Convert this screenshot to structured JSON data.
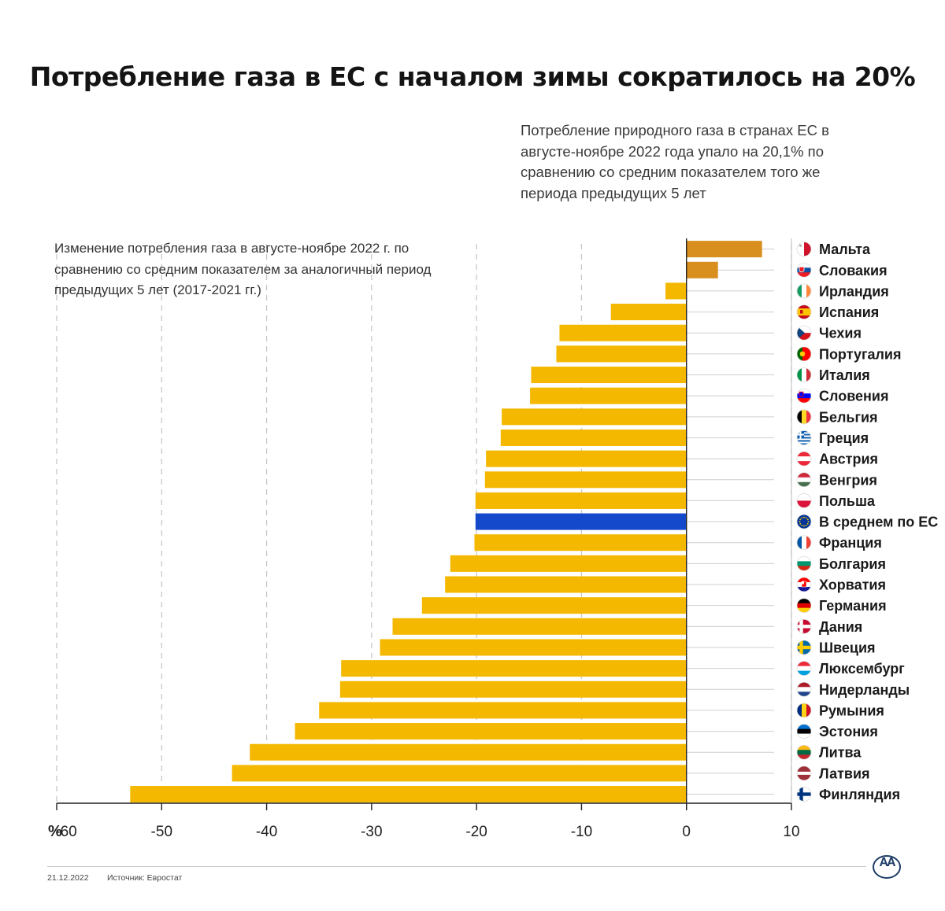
{
  "title": "Потребление газа в ЕС с началом зимы сократилось на 20%",
  "subtitle": "Потребление природного газа в странах ЕС в августе-ноябре 2022 года упало на 20,1% по сравнению со средним показателем того же периода предыдущих 5 лет",
  "colors": {
    "positive": "#d88f1e",
    "negative": "#f4b800",
    "average": "#1449cc",
    "grid": "#c8c8c8",
    "axis": "#222222",
    "logo": "#1f3d68"
  },
  "chart_data": {
    "type": "bar",
    "orientation": "horizontal",
    "description": "Изменение потребления газа в августе-ноябре 2022 г. по сравнению со средним показателем за аналогичный период предыдущих 5 лет (2017-2021 гг.)",
    "xlim": [
      -60,
      10
    ],
    "ticks": [
      {
        "value": -60,
        "label": "-60"
      },
      {
        "value": -50,
        "label": "-50"
      },
      {
        "value": -40,
        "label": "-40"
      },
      {
        "value": -30,
        "label": "-30"
      },
      {
        "value": -20,
        "label": "-20"
      },
      {
        "value": -10,
        "label": "-10"
      },
      {
        "value": 0,
        "label": "0"
      },
      {
        "value": 10,
        "label": "10"
      }
    ],
    "unit_label": "%",
    "grid": true,
    "categories": [
      "Мальта",
      "Словакия",
      "Ирландия",
      "Испания",
      "Чехия",
      "Португалия",
      "Италия",
      "Словения",
      "Бельгия",
      "Греция",
      "Австрия",
      "Венгрия",
      "Польша",
      "В среднем по ЕС",
      "Франция",
      "Болгария",
      "Хорватия",
      "Германия",
      "Дания",
      "Швеция",
      "Люксембург",
      "Нидерланды",
      "Румыния",
      "Эстония",
      "Литва",
      "Латвия",
      "Финляндия"
    ],
    "values": [
      7.2,
      3.0,
      -2.0,
      -7.2,
      -12.1,
      -12.4,
      -14.8,
      -14.9,
      -17.6,
      -17.7,
      -19.1,
      -19.2,
      -20.1,
      -20.1,
      -20.2,
      -22.5,
      -23.0,
      -25.2,
      -28.0,
      -29.2,
      -32.9,
      -33.0,
      -35.0,
      -37.3,
      -41.6,
      -43.3,
      -53.0
    ],
    "highlight": "В среднем по ЕС",
    "flags": [
      "mt",
      "sk",
      "ie",
      "es",
      "cz",
      "pt",
      "it",
      "si",
      "be",
      "gr",
      "at",
      "hu",
      "pl",
      "eu",
      "fr",
      "bg",
      "hr",
      "de",
      "dk",
      "se",
      "lu",
      "nl",
      "ro",
      "ee",
      "lt",
      "lv",
      "fi"
    ]
  },
  "footer": {
    "date": "21.12.2022",
    "source": "Источник: Евростат",
    "logo_text": "AA"
  }
}
